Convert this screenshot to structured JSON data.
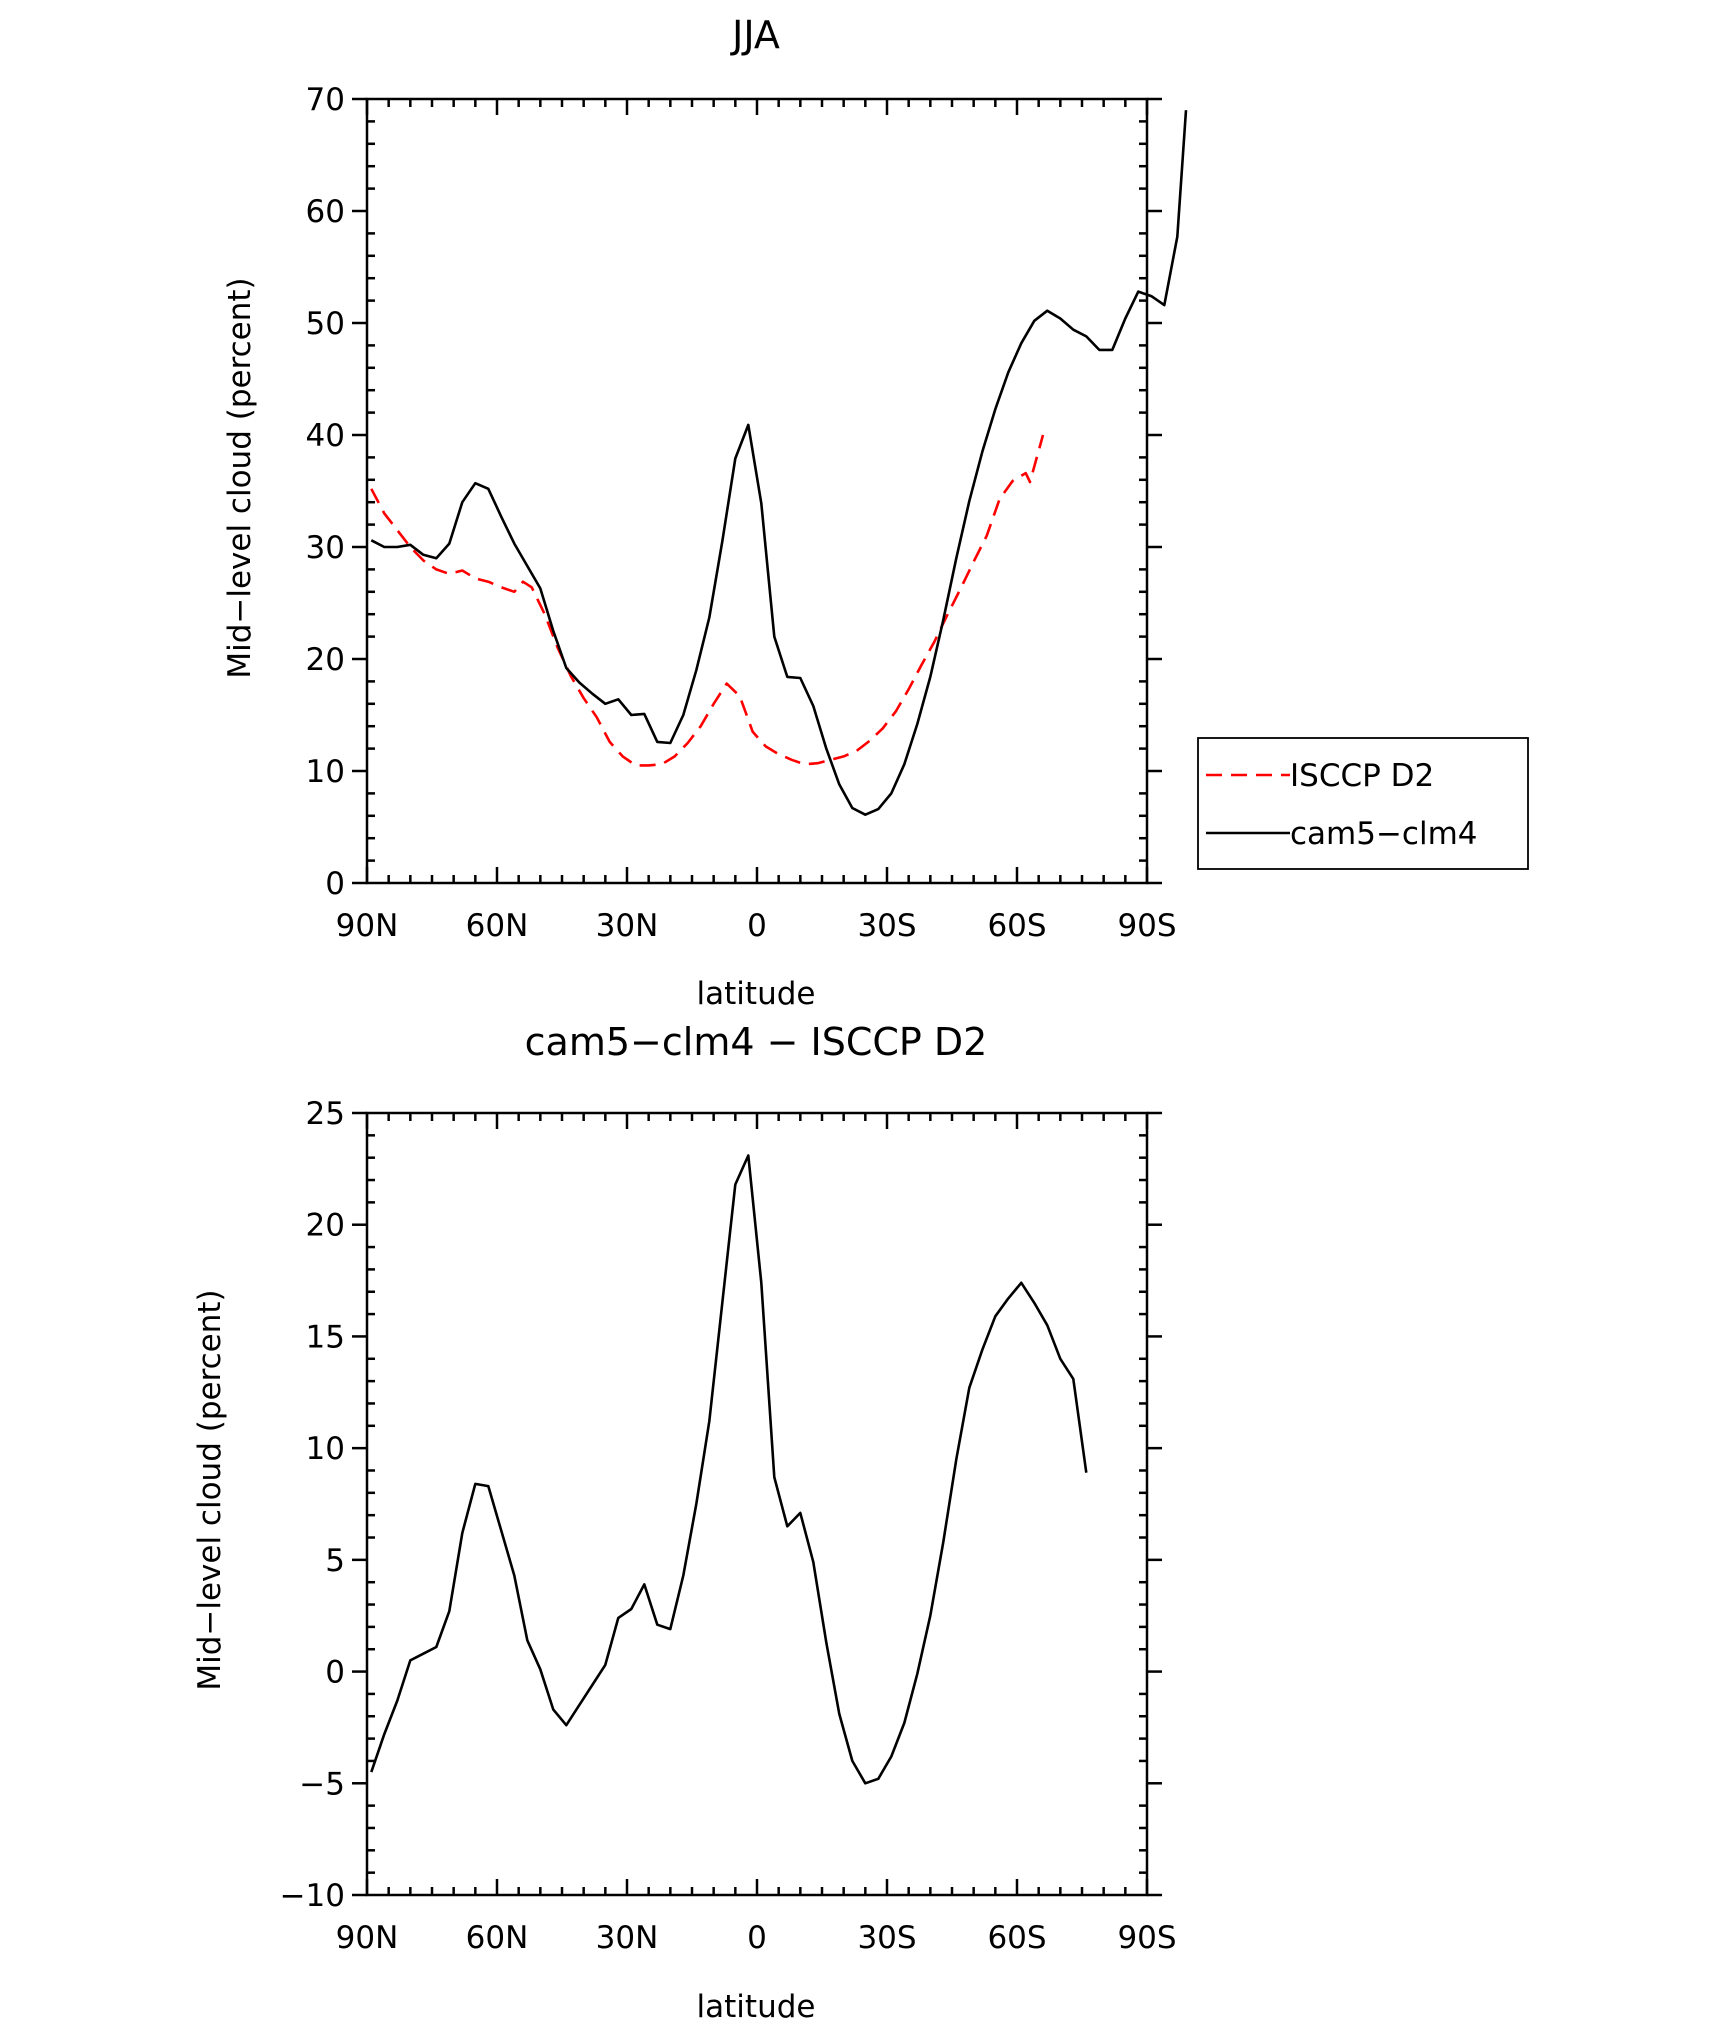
{
  "chart_data": [
    {
      "type": "line",
      "title": "JJA",
      "xlabel": "latitude",
      "ylabel": "Mid−level cloud (percent)",
      "xlim": [
        90,
        -90
      ],
      "ylim": [
        0,
        70
      ],
      "x_ticks": [
        90,
        60,
        30,
        0,
        -30,
        -60,
        -90
      ],
      "x_tick_labels": [
        "90N",
        "60N",
        "30N",
        "0",
        "30S",
        "60S",
        "90S"
      ],
      "y_ticks": [
        0,
        10,
        20,
        30,
        40,
        50,
        60,
        70
      ],
      "y_tick_labels": [
        "0",
        "10",
        "20",
        "30",
        "40",
        "50",
        "60",
        "70"
      ],
      "grid": false,
      "legend": {
        "position": "right",
        "entries": [
          "ISCCP D2",
          "cam5−clm4"
        ]
      },
      "series": [
        {
          "name": "ISCCP D2",
          "color": "#ff0000",
          "dash": "dashed",
          "points": [
            [
              89,
              35.2
            ],
            [
              86,
              33
            ],
            [
              83,
              31.5
            ],
            [
              80,
              30
            ],
            [
              77,
              28.8
            ],
            [
              74,
              28
            ],
            [
              71,
              27.6
            ],
            [
              68,
              27.9
            ],
            [
              65,
              27.2
            ],
            [
              62,
              26.9
            ],
            [
              59,
              26.4
            ],
            [
              56,
              26
            ],
            [
              54,
              26.9
            ],
            [
              52,
              26.4
            ],
            [
              49,
              24
            ],
            [
              46,
              21
            ],
            [
              43,
              18.5
            ],
            [
              40,
              16.5
            ],
            [
              37,
              14.8
            ],
            [
              34,
              12.6
            ],
            [
              31,
              11.3
            ],
            [
              28,
              10.5
            ],
            [
              25,
              10.5
            ],
            [
              22,
              10.6
            ],
            [
              19,
              11.3
            ],
            [
              16,
              12.5
            ],
            [
              13,
              14
            ],
            [
              10,
              16
            ],
            [
              7,
              17.8
            ],
            [
              4,
              16.7
            ],
            [
              1,
              13.5
            ],
            [
              -2,
              12.2
            ],
            [
              -5,
              11.5
            ],
            [
              -8,
              11
            ],
            [
              -11,
              10.6
            ],
            [
              -14,
              10.7
            ],
            [
              -17,
              11
            ],
            [
              -20,
              11.3
            ],
            [
              -23,
              11.8
            ],
            [
              -26,
              12.7
            ],
            [
              -29,
              13.8
            ],
            [
              -32,
              15.3
            ],
            [
              -35,
              17.3
            ],
            [
              -38,
              19.5
            ],
            [
              -41,
              21.6
            ],
            [
              -44,
              24
            ],
            [
              -47,
              26.3
            ],
            [
              -50,
              28.7
            ],
            [
              -53,
              31
            ],
            [
              -56,
              34.3
            ],
            [
              -59,
              35.9
            ],
            [
              -62,
              36.6
            ],
            [
              -63,
              35.8
            ],
            [
              -66,
              40
            ]
          ]
        },
        {
          "name": "cam5−clm4",
          "color": "#000000",
          "dash": "solid",
          "points": [
            [
              89,
              30.6
            ],
            [
              86,
              30
            ],
            [
              83,
              30
            ],
            [
              80,
              30.2
            ],
            [
              77,
              29.3
            ],
            [
              74,
              29
            ],
            [
              71,
              30.3
            ],
            [
              68,
              34
            ],
            [
              65,
              35.7
            ],
            [
              62,
              35.2
            ],
            [
              59,
              32.7
            ],
            [
              56,
              30.3
            ],
            [
              53,
              28.3
            ],
            [
              50,
              26.3
            ],
            [
              47,
              22.5
            ],
            [
              44,
              19.2
            ],
            [
              41,
              17.9
            ],
            [
              38,
              16.9
            ],
            [
              35,
              16
            ],
            [
              32,
              16.4
            ],
            [
              29,
              15
            ],
            [
              26,
              15.1
            ],
            [
              23,
              12.6
            ],
            [
              20,
              12.5
            ],
            [
              17,
              15
            ],
            [
              14,
              19
            ],
            [
              11,
              23.7
            ],
            [
              8,
              30.5
            ],
            [
              5,
              37.9
            ],
            [
              2,
              40.9
            ],
            [
              -1,
              33.9
            ],
            [
              -4,
              22
            ],
            [
              -7,
              18.4
            ],
            [
              -10,
              18.3
            ],
            [
              -13,
              15.8
            ],
            [
              -16,
              12
            ],
            [
              -19,
              8.8
            ],
            [
              -22,
              6.7
            ],
            [
              -25,
              6.1
            ],
            [
              -28,
              6.6
            ],
            [
              -31,
              8
            ],
            [
              -34,
              10.6
            ],
            [
              -37,
              14.2
            ],
            [
              -40,
              18.4
            ],
            [
              -43,
              23.5
            ],
            [
              -46,
              29
            ],
            [
              -49,
              34.1
            ],
            [
              -52,
              38.5
            ],
            [
              -55,
              42.3
            ],
            [
              -58,
              45.6
            ],
            [
              -61,
              48.2
            ],
            [
              -64,
              50.2
            ],
            [
              -67,
              51.1
            ],
            [
              -70,
              50.4
            ],
            [
              -73,
              49.4
            ],
            [
              -76,
              48.8
            ],
            [
              -79,
              47.6
            ],
            [
              -82,
              47.6
            ],
            [
              -85,
              50.4
            ],
            [
              -88,
              52.8
            ],
            [
              -91,
              52.4
            ],
            [
              -94,
              51.6
            ],
            [
              -97,
              57.7
            ],
            [
              -99,
              69
            ]
          ]
        }
      ]
    },
    {
      "type": "line",
      "title": "cam5−clm4 − ISCCP D2",
      "xlabel": "latitude",
      "ylabel": "Mid−level cloud (percent)",
      "xlim": [
        90,
        -90
      ],
      "ylim": [
        -10,
        25
      ],
      "x_ticks": [
        90,
        60,
        30,
        0,
        -30,
        -60,
        -90
      ],
      "x_tick_labels": [
        "90N",
        "60N",
        "30N",
        "0",
        "30S",
        "60S",
        "90S"
      ],
      "y_ticks": [
        -10,
        -5,
        0,
        5,
        10,
        15,
        20,
        25
      ],
      "y_tick_labels": [
        "−10",
        "−5",
        "0",
        "5",
        "10",
        "15",
        "20",
        "25"
      ],
      "grid": false,
      "series": [
        {
          "color": "#000000",
          "dash": "solid",
          "points": [
            [
              89,
              -4.5
            ],
            [
              86,
              -2.8
            ],
            [
              83,
              -1.3
            ],
            [
              80,
              0.5
            ],
            [
              77,
              0.8
            ],
            [
              74,
              1.1
            ],
            [
              71,
              2.7
            ],
            [
              68,
              6.2
            ],
            [
              65,
              8.4
            ],
            [
              62,
              8.3
            ],
            [
              59,
              6.3
            ],
            [
              56,
              4.3
            ],
            [
              53,
              1.4
            ],
            [
              50,
              0.1
            ],
            [
              47,
              -1.7
            ],
            [
              44,
              -2.4
            ],
            [
              41,
              -1.5
            ],
            [
              38,
              -0.6
            ],
            [
              35,
              0.3
            ],
            [
              32,
              2.4
            ],
            [
              29,
              2.8
            ],
            [
              26,
              3.9
            ],
            [
              23,
              2.1
            ],
            [
              20,
              1.9
            ],
            [
              17,
              4.3
            ],
            [
              14,
              7.5
            ],
            [
              11,
              11.2
            ],
            [
              8,
              16.5
            ],
            [
              5,
              21.8
            ],
            [
              2,
              23.1
            ],
            [
              -1,
              17.4
            ],
            [
              -4,
              8.7
            ],
            [
              -7,
              6.5
            ],
            [
              -10,
              7.1
            ],
            [
              -13,
              4.9
            ],
            [
              -16,
              1.3
            ],
            [
              -19,
              -1.9
            ],
            [
              -22,
              -4
            ],
            [
              -25,
              -5
            ],
            [
              -28,
              -4.8
            ],
            [
              -31,
              -3.8
            ],
            [
              -34,
              -2.3
            ],
            [
              -37,
              -0.1
            ],
            [
              -40,
              2.5
            ],
            [
              -43,
              5.8
            ],
            [
              -46,
              9.5
            ],
            [
              -49,
              12.7
            ],
            [
              -52,
              14.4
            ],
            [
              -55,
              15.9
            ],
            [
              -58,
              16.7
            ],
            [
              -61,
              17.4
            ],
            [
              -64,
              16.5
            ],
            [
              -67,
              15.5
            ],
            [
              -70,
              14
            ],
            [
              -73,
              13.1
            ],
            [
              -76,
              8.9
            ]
          ]
        }
      ]
    }
  ]
}
